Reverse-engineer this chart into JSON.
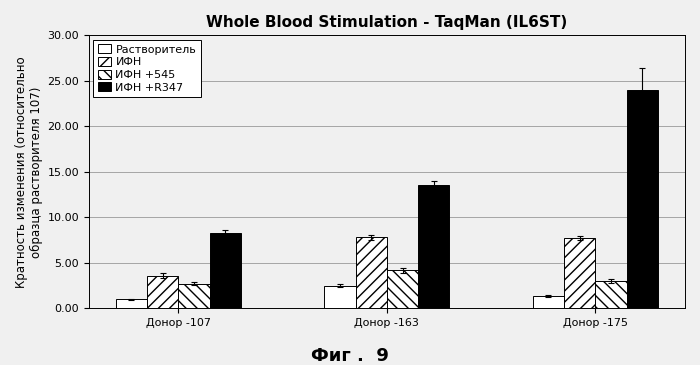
{
  "title": "Whole Blood Stimulation - TaqMan (IL6ST)",
  "xlabel_fig": "Фиг .  9",
  "ylabel_line1": "Кратность изменения (относительно",
  "ylabel_line2": "образца растворителя 107)",
  "categories": [
    "Донор -107",
    "Донор -163",
    "Донор -175"
  ],
  "legend_labels": [
    "Растворитель",
    "ИФН",
    "ИФН +545",
    "ИФН +R347"
  ],
  "values": [
    [
      1.0,
      2.5,
      1.4
    ],
    [
      3.6,
      7.8,
      7.7
    ],
    [
      2.7,
      4.2,
      3.0
    ],
    [
      8.3,
      13.5,
      24.0
    ]
  ],
  "errors": [
    [
      0.08,
      0.15,
      0.12
    ],
    [
      0.25,
      0.28,
      0.22
    ],
    [
      0.18,
      0.28,
      0.18
    ],
    [
      0.35,
      0.45,
      2.4
    ]
  ],
  "ylim": [
    0,
    30
  ],
  "yticks": [
    0.0,
    5.0,
    10.0,
    15.0,
    20.0,
    25.0,
    30.0
  ],
  "ytick_labels": [
    "0.00",
    "5.00",
    "10.00",
    "15.00",
    "20.00",
    "25.00",
    "30.00"
  ],
  "bar_width": 0.15,
  "background_color": "#f0f0f0",
  "grid_color": "#999999",
  "title_fontsize": 11,
  "axis_fontsize": 8.5,
  "tick_fontsize": 8,
  "legend_fontsize": 8,
  "fig_label_fontsize": 13
}
